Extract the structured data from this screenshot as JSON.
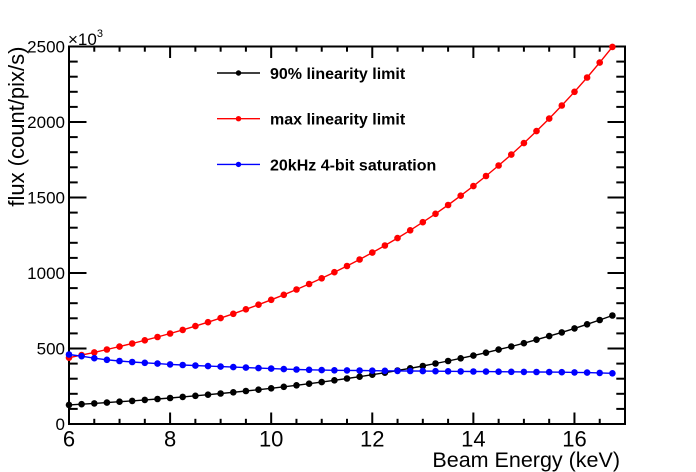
{
  "chart_data": {
    "type": "line",
    "title": "",
    "xlabel": "Beam Energy (keV)",
    "ylabel": "flux (count/pix/s)",
    "y_axis_multiplier": {
      "base": "×10",
      "exponent": "3"
    },
    "xlim": [
      6,
      17
    ],
    "ylim": [
      0,
      2500
    ],
    "x_major_ticks": [
      6,
      8,
      10,
      12,
      14,
      16
    ],
    "x_minor_tick_step": 0.5,
    "y_major_ticks": [
      0,
      500,
      1000,
      1500,
      2000,
      2500
    ],
    "y_minor_tick_step": 100,
    "grid": false,
    "background_color": "#ffffff",
    "axis_color": "#000000",
    "legend_position": "top-left-inside",
    "values_unit": "1e3 count/pix/s",
    "x": [
      6.0,
      6.25,
      6.5,
      6.75,
      7.0,
      7.25,
      7.5,
      7.75,
      8.0,
      8.25,
      8.5,
      8.75,
      9.0,
      9.25,
      9.5,
      9.75,
      10.0,
      10.25,
      10.5,
      10.75,
      11.0,
      11.25,
      11.5,
      11.75,
      12.0,
      12.25,
      12.5,
      12.75,
      13.0,
      13.25,
      13.5,
      13.75,
      14.0,
      14.25,
      14.5,
      14.75,
      15.0,
      15.25,
      15.5,
      15.75,
      16.0,
      16.25,
      16.5,
      16.75
    ],
    "series": [
      {
        "name": "90% linearity limit",
        "color": "#000000",
        "marker": "filled-circle",
        "values": [
          126.4,
          131.3,
          136.5,
          141.9,
          147.5,
          153.3,
          159.4,
          165.8,
          172.4,
          179.3,
          186.5,
          194.0,
          201.8,
          209.9,
          218.4,
          227.3,
          236.5,
          246.2,
          256.3,
          266.7,
          277.7,
          289.1,
          301.1,
          313.5,
          326.5,
          340.0,
          354.2,
          369.0,
          384.4,
          400.5,
          417.3,
          434.9,
          453.3,
          472.4,
          492.4,
          513.4,
          535.2,
          558.1,
          581.9,
          606.9,
          632.9,
          660.2,
          688.7,
          718.4
        ]
      },
      {
        "name": "max linearity limit",
        "color": "#ff0000",
        "marker": "filled-circle",
        "values": [
          439.2,
          456.5,
          474.4,
          493.1,
          512.6,
          532.9,
          554.1,
          576.2,
          599.2,
          623.2,
          648.2,
          674.2,
          701.4,
          729.7,
          759.3,
          790.1,
          822.2,
          855.7,
          890.7,
          927.2,
          965.2,
          1005.0,
          1046.4,
          1089.7,
          1134.8,
          1181.9,
          1231.1,
          1282.5,
          1336.1,
          1392.1,
          1450.6,
          1511.7,
          1575.4,
          1642.1,
          1711.7,
          1784.4,
          1860.3,
          1939.7,
          2022.7,
          2109.4,
          2200.0,
          2294.7,
          2393.7,
          2497.2
        ]
      },
      {
        "name": "20kHz 4-bit saturation",
        "color": "#0000ff",
        "marker": "filled-circle",
        "values": [
          460.0,
          449.0,
          436.0,
          425.0,
          417.0,
          410.6,
          405.0,
          399.7,
          395.0,
          390.8,
          387.0,
          383.4,
          380.0,
          376.7,
          373.5,
          370.2,
          367.0,
          363.8,
          361.0,
          358.7,
          357.0,
          355.9,
          355.0,
          354.0,
          353.0,
          352.2,
          351.5,
          350.7,
          350.0,
          349.5,
          349.0,
          348.2,
          347.5,
          347.0,
          346.5,
          345.8,
          345.0,
          344.2,
          343.5,
          342.8,
          342.0,
          340.5,
          338.5,
          336.0
        ]
      }
    ]
  }
}
